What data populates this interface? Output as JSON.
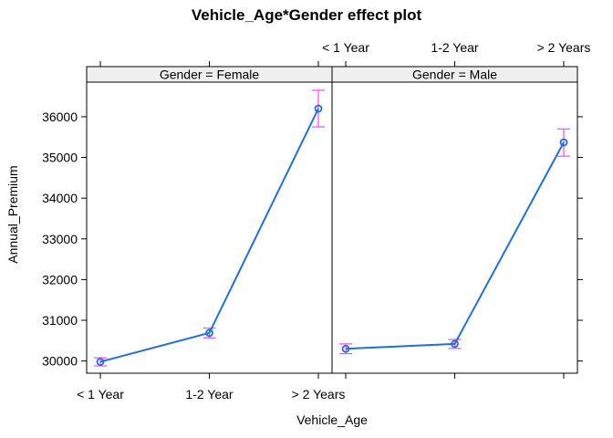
{
  "chart_data": {
    "type": "line",
    "title": "Vehicle_Age*Gender effect plot",
    "xlabel": "Vehicle_Age",
    "ylabel": "Annual_Premium",
    "categories": [
      "< 1 Year",
      "1-2 Year",
      "> 2 Years"
    ],
    "yticks": [
      30000,
      31000,
      32000,
      33000,
      34000,
      35000,
      36000
    ],
    "ylim": [
      29700,
      36850
    ],
    "panels": [
      {
        "strip_label": "Gender = Female",
        "values": [
          29980,
          30690,
          36200
        ],
        "lower": [
          29880,
          30570,
          35750
        ],
        "upper": [
          30080,
          30810,
          36650
        ]
      },
      {
        "strip_label": "Gender = Male",
        "values": [
          30300,
          30420,
          35370
        ],
        "lower": [
          30180,
          30310,
          35030
        ],
        "upper": [
          30420,
          30530,
          35700
        ]
      }
    ],
    "colors": {
      "line": "#1f6fe0",
      "point": "#1f6fe0",
      "error_bar": "#ff44ff",
      "strip": "#efefef",
      "frame": "#000000"
    }
  }
}
